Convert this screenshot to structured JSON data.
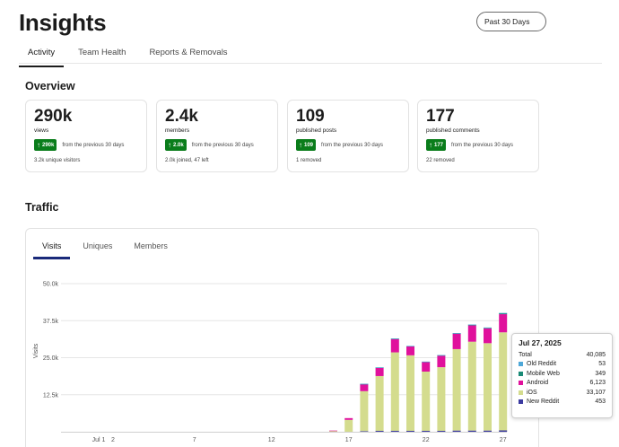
{
  "header": {
    "title": "Insights",
    "range_button": "Past 30 Days"
  },
  "tabs": [
    {
      "label": "Activity",
      "active": true
    },
    {
      "label": "Team Health",
      "active": false
    },
    {
      "label": "Reports & Removals",
      "active": false
    }
  ],
  "overview": {
    "title": "Overview",
    "cards": [
      {
        "value": "290k",
        "label": "views",
        "badge": "290k",
        "trend_text": "from the previous 30 days",
        "note": "3.2k unique visitors"
      },
      {
        "value": "2.4k",
        "label": "members",
        "badge": "2.0k",
        "trend_text": "from the previous 30 days",
        "note": "2.0k joined, 47 left"
      },
      {
        "value": "109",
        "label": "published posts",
        "badge": "109",
        "trend_text": "from the previous 30 days",
        "note": "1 removed"
      },
      {
        "value": "177",
        "label": "published comments",
        "badge": "177",
        "trend_text": "from the previous 30 days",
        "note": "22 removed"
      }
    ]
  },
  "traffic": {
    "title": "Traffic",
    "subtabs": [
      {
        "label": "Visits",
        "active": true
      },
      {
        "label": "Uniques",
        "active": false
      },
      {
        "label": "Members",
        "active": false
      }
    ]
  },
  "colors": {
    "ios": "#d4dc8e",
    "android": "#e0119c",
    "mobile_web": "#1a8a76",
    "old_reddit": "#4fa8d8",
    "new_reddit": "#3b3aa0",
    "badge": "#0a7d1b"
  },
  "chart_data": {
    "type": "bar",
    "stacked": true,
    "ylabel": "Visits",
    "ylim": [
      0,
      50000
    ],
    "y_ticks": [
      "50.0k",
      "37.5k",
      "25.0k",
      "12.5k"
    ],
    "x_tick_labels": [
      "Jul 1",
      "2",
      "7",
      "12",
      "17",
      "22",
      "27"
    ],
    "categories": [
      "Jul 16",
      "Jul 17",
      "Jul 18",
      "Jul 19",
      "Jul 20",
      "Jul 21",
      "Jul 22",
      "Jul 23",
      "Jul 24",
      "Jul 25",
      "Jul 26",
      "Jul 27"
    ],
    "series": [
      {
        "key": "ios",
        "values": [
          300,
          4000,
          13500,
          18500,
          26500,
          25500,
          20000,
          21500,
          27500,
          30000,
          29500,
          33107
        ]
      },
      {
        "key": "android",
        "values": [
          100,
          600,
          2400,
          2800,
          4500,
          3000,
          3200,
          3900,
          5200,
          5500,
          5000,
          6123
        ]
      },
      {
        "key": "mobile_web",
        "values": [
          0,
          0,
          50,
          100,
          150,
          150,
          150,
          150,
          200,
          250,
          250,
          349
        ]
      },
      {
        "key": "old_reddit",
        "values": [
          0,
          0,
          10,
          20,
          20,
          20,
          20,
          20,
          30,
          40,
          40,
          53
        ]
      },
      {
        "key": "new_reddit",
        "values": [
          0,
          0,
          200,
          300,
          300,
          300,
          300,
          300,
          400,
          400,
          400,
          453
        ]
      }
    ],
    "tooltip": {
      "date": "Jul 27, 2025",
      "total_label": "Total",
      "total": "40,085",
      "rows": [
        {
          "name": "Old Reddit",
          "value": "53",
          "key": "old_reddit"
        },
        {
          "name": "Mobile Web",
          "value": "349",
          "key": "mobile_web"
        },
        {
          "name": "Android",
          "value": "6,123",
          "key": "android"
        },
        {
          "name": "iOS",
          "value": "33,107",
          "key": "ios"
        },
        {
          "name": "New Reddit",
          "value": "453",
          "key": "new_reddit"
        }
      ]
    }
  }
}
